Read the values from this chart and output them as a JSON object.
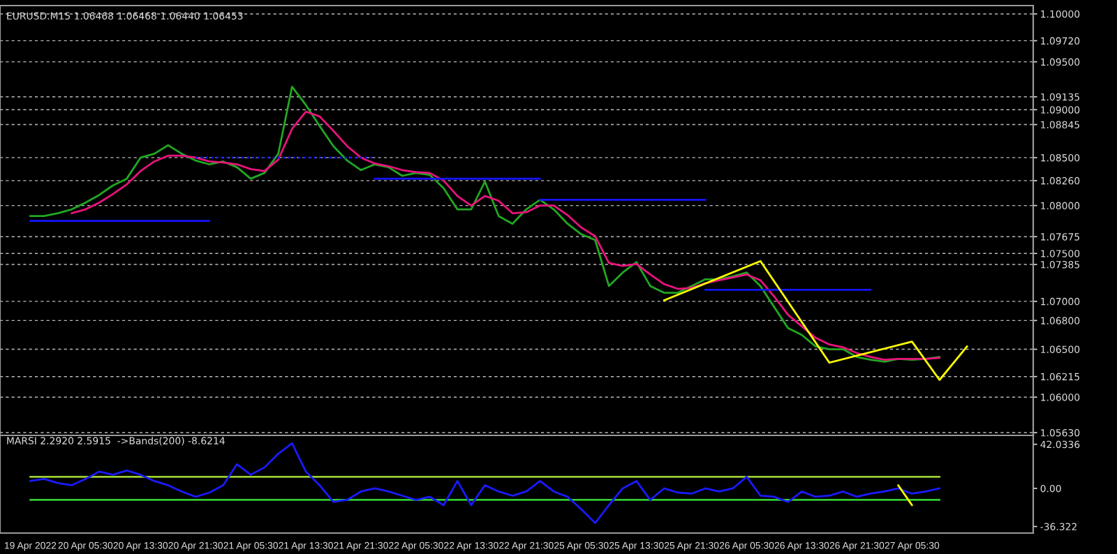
{
  "chart_data": [
    {
      "type": "line",
      "title": "EURUSD.M15 1.06468 1.06468 1.06440 1.06453",
      "tick_labels": "y",
      "grid": "y",
      "marker": "none",
      "categories": [
        null,
        null,
        null,
        null,
        null,
        null,
        null,
        null,
        null,
        null,
        null,
        null,
        null,
        null,
        null,
        null,
        null,
        null,
        null,
        null,
        null,
        null,
        null,
        null,
        null,
        null,
        null,
        null,
        null,
        null,
        null,
        null,
        null,
        null,
        null,
        null,
        null,
        null,
        null,
        null,
        null,
        null,
        null,
        null,
        null,
        null,
        null,
        null,
        null,
        null,
        null,
        null,
        null,
        null,
        null,
        null,
        null,
        null,
        null,
        null,
        null,
        null,
        null,
        null,
        null,
        null,
        null,
        null,
        null
      ],
      "ylim": [
        1.05601,
        1.10087
      ],
      "yticks": [
        {
          "value": 1.1,
          "label": "1.10000"
        },
        {
          "value": 1.0972,
          "label": "1.09720"
        },
        {
          "value": 1.095,
          "label": "1.09500"
        },
        {
          "value": 1.09135,
          "label": "1.09135"
        },
        {
          "value": 1.09,
          "label": "1.09000"
        },
        {
          "value": 1.08845,
          "label": "1.08845"
        },
        {
          "value": 1.085,
          "label": "1.08500"
        },
        {
          "value": 1.0826,
          "label": "1.08260"
        },
        {
          "value": 1.08,
          "label": "1.08000"
        },
        {
          "value": 1.07675,
          "label": "1.07675"
        },
        {
          "value": 1.075,
          "label": "1.07500"
        },
        {
          "value": 1.07385,
          "label": "1.07385"
        },
        {
          "value": 1.07,
          "label": "1.07000"
        },
        {
          "value": 1.068,
          "label": "1.06800"
        },
        {
          "value": 1.065,
          "label": "1.06500"
        },
        {
          "value": 1.06215,
          "label": "1.06215"
        },
        {
          "value": 1.06,
          "label": "1.06000"
        },
        {
          "value": 1.0563,
          "label": "1.05630"
        }
      ],
      "series": [
        {
          "color": "#22a722",
          "values": [
            1.0789,
            1.0789,
            1.0792,
            1.0796,
            1.0803,
            1.0811,
            1.0821,
            1.0828,
            1.085,
            1.0854,
            1.0863,
            1.0854,
            1.0847,
            1.0843,
            1.0846,
            1.084,
            1.0828,
            1.0834,
            1.0854,
            1.0924,
            1.0905,
            1.0883,
            1.0862,
            1.0847,
            1.0837,
            1.0843,
            1.084,
            1.0831,
            1.0834,
            1.0832,
            1.0818,
            1.0796,
            1.0796,
            1.0825,
            1.0789,
            1.0781,
            1.0796,
            1.0806,
            1.0796,
            1.0781,
            1.077,
            1.0764,
            1.0716,
            1.073,
            1.0741,
            1.0716,
            1.0709,
            1.0709,
            1.0716,
            1.0723,
            1.0723,
            1.0726,
            1.073,
            1.0716,
            1.0694,
            1.0672,
            1.0665,
            1.0653,
            1.065,
            1.065,
            1.0642,
            1.0639,
            1.0637,
            1.064,
            1.0639,
            1.064,
            1.0642,
            null,
            null
          ]
        },
        {
          "color": "#e8137c",
          "values": [
            null,
            null,
            null,
            1.0792,
            1.0796,
            1.0803,
            1.0812,
            1.0822,
            1.0836,
            1.0846,
            1.0852,
            1.0852,
            1.085,
            1.0846,
            1.0845,
            1.0843,
            1.0838,
            1.0836,
            1.0848,
            1.088,
            1.0898,
            1.0893,
            1.0878,
            1.0862,
            1.085,
            1.0844,
            1.0841,
            1.0837,
            1.0835,
            1.0834,
            1.0826,
            1.081,
            1.08,
            1.081,
            1.0805,
            1.0792,
            1.0793,
            1.08,
            1.08,
            1.079,
            1.0777,
            1.0768,
            1.074,
            1.0737,
            1.0739,
            1.0728,
            1.0718,
            1.0713,
            1.0714,
            1.0719,
            1.0722,
            1.0725,
            1.0728,
            1.0722,
            1.0705,
            1.0686,
            1.0674,
            1.0662,
            1.0655,
            1.0652,
            1.0646,
            1.0642,
            1.0639,
            1.064,
            1.064,
            1.064,
            1.0641,
            null,
            null
          ]
        },
        {
          "color": "#1414ff",
          "values": [
            1.0784,
            null,
            null,
            null,
            null,
            null,
            null,
            null,
            null,
            null,
            null,
            null,
            null,
            1.0784,
            null,
            null,
            null,
            null,
            null,
            null,
            null,
            null,
            null,
            null,
            null,
            null,
            null,
            null,
            null,
            null,
            null,
            null,
            null,
            null,
            null,
            null,
            null,
            null,
            null,
            null,
            null,
            null,
            null,
            null,
            null,
            null,
            null,
            null,
            null,
            null,
            null,
            null,
            null,
            null,
            null,
            null,
            null,
            null,
            null,
            null,
            null,
            null,
            null,
            null,
            null,
            null,
            null,
            null,
            null
          ]
        },
        {
          "color": "#1414ff",
          "line_style": "dotted",
          "values": [
            null,
            null,
            null,
            null,
            null,
            null,
            null,
            null,
            null,
            null,
            null,
            null,
            1.085,
            null,
            null,
            null,
            null,
            null,
            null,
            null,
            null,
            null,
            null,
            null,
            null,
            1.085,
            null,
            null,
            null,
            null,
            null,
            null,
            null,
            null,
            null,
            null,
            null,
            null,
            null,
            null,
            null,
            null,
            null,
            null,
            null,
            null,
            null,
            null,
            null,
            null,
            null,
            null,
            null,
            null,
            null,
            null,
            null,
            null,
            null,
            null,
            null,
            null,
            null,
            null,
            null,
            null,
            null,
            null,
            null
          ]
        },
        {
          "color": "#1414ff",
          "values": [
            null,
            null,
            null,
            null,
            null,
            null,
            null,
            null,
            null,
            null,
            null,
            null,
            null,
            null,
            null,
            null,
            null,
            null,
            null,
            null,
            null,
            null,
            null,
            null,
            null,
            1.0828,
            null,
            null,
            null,
            null,
            null,
            null,
            null,
            null,
            null,
            null,
            null,
            1.0828,
            null,
            null,
            null,
            null,
            null,
            null,
            null,
            null,
            null,
            null,
            null,
            null,
            null,
            null,
            null,
            null,
            null,
            null,
            null,
            null,
            null,
            null,
            null,
            null,
            null,
            null,
            null,
            null,
            null,
            null,
            null
          ]
        },
        {
          "color": "#1414ff",
          "values": [
            null,
            null,
            null,
            null,
            null,
            null,
            null,
            null,
            null,
            null,
            null,
            null,
            null,
            null,
            null,
            null,
            null,
            null,
            null,
            null,
            null,
            null,
            null,
            null,
            null,
            null,
            null,
            null,
            null,
            null,
            null,
            null,
            null,
            null,
            null,
            null,
            null,
            1.0806,
            null,
            null,
            null,
            null,
            null,
            null,
            null,
            null,
            null,
            null,
            null,
            1.0806,
            null,
            null,
            null,
            null,
            null,
            null,
            null,
            null,
            null,
            null,
            null,
            null,
            null,
            null,
            null,
            null,
            null,
            null,
            null
          ]
        },
        {
          "color": "#1414ff",
          "values": [
            null,
            null,
            null,
            null,
            null,
            null,
            null,
            null,
            null,
            null,
            null,
            null,
            null,
            null,
            null,
            null,
            null,
            null,
            null,
            null,
            null,
            null,
            null,
            null,
            null,
            null,
            null,
            null,
            null,
            null,
            null,
            null,
            null,
            null,
            null,
            null,
            null,
            null,
            null,
            null,
            null,
            null,
            null,
            null,
            null,
            null,
            null,
            null,
            null,
            1.0712,
            null,
            null,
            null,
            null,
            null,
            null,
            null,
            null,
            null,
            null,
            null,
            1.0712,
            null,
            null,
            null,
            null,
            null,
            null,
            null
          ]
        },
        {
          "color": "#ffff00",
          "values": [
            null,
            null,
            null,
            null,
            null,
            null,
            null,
            null,
            null,
            null,
            null,
            null,
            null,
            null,
            null,
            null,
            null,
            null,
            null,
            null,
            null,
            null,
            null,
            null,
            null,
            null,
            null,
            null,
            null,
            null,
            null,
            null,
            null,
            null,
            null,
            null,
            null,
            null,
            null,
            null,
            null,
            null,
            null,
            null,
            null,
            null,
            1.0701,
            null,
            null,
            null,
            null,
            null,
            null,
            1.0742,
            null,
            null,
            null,
            null,
            1.0636,
            null,
            null,
            null,
            null,
            null,
            1.0658,
            null,
            1.0618,
            null,
            1.0653
          ]
        }
      ]
    },
    {
      "type": "line",
      "title": "MARSI 2.2920 2.5915  ->Bands(200) -8.6214",
      "grid": false,
      "marker": "none",
      "categories": [
        "19 Apr 2022",
        null,
        null,
        null,
        "20 Apr 05:30",
        null,
        null,
        null,
        "20 Apr 13:30",
        null,
        null,
        null,
        "20 Apr 21:30",
        null,
        null,
        null,
        "21 Apr 05:30",
        null,
        null,
        null,
        "21 Apr 13:30",
        null,
        null,
        null,
        "21 Apr 21:30",
        null,
        null,
        null,
        "22 Apr 05:30",
        null,
        null,
        null,
        "22 Apr 13:30",
        null,
        null,
        null,
        "22 Apr 21:30",
        null,
        null,
        null,
        "25 Apr 05:30",
        null,
        null,
        null,
        "25 Apr 13:30",
        null,
        null,
        null,
        "25 Apr 21:30",
        null,
        null,
        null,
        "26 Apr 05:30",
        null,
        null,
        null,
        "26 Apr 13:30",
        null,
        null,
        null,
        "26 Apr 21:30",
        null,
        null,
        null,
        "27 Apr 05:30",
        null,
        null,
        null,
        null
      ],
      "ylim": [
        -42.6,
        50.5
      ],
      "yticks": [
        42.0336,
        {
          "value": 0,
          "label": "0.00"
        },
        -36.322
      ],
      "series": [
        {
          "color": "#9acd32",
          "values": [
            11,
            11,
            11,
            11,
            11,
            11,
            11,
            11,
            11,
            11,
            11,
            11,
            11,
            11,
            11,
            11,
            11,
            11,
            11,
            11,
            11,
            11,
            11,
            11,
            11,
            11,
            11,
            11,
            11,
            11,
            11,
            11,
            11,
            11,
            11,
            11,
            11,
            11,
            11,
            11,
            11,
            11,
            11,
            11,
            11,
            11,
            11,
            11,
            11,
            11,
            11,
            11,
            11,
            11,
            11,
            11,
            11,
            11,
            11,
            11,
            11,
            11,
            11,
            11,
            11,
            11,
            11,
            null,
            null
          ]
        },
        {
          "color": "#32cd32",
          "values": [
            -11,
            -11,
            -11,
            -11,
            -11,
            -11,
            -11,
            -11,
            -11,
            -11,
            -11,
            -11,
            -11,
            -11,
            -11,
            -11,
            -11,
            -11,
            -11,
            -11,
            -11,
            -11,
            -11,
            -11,
            -11,
            -11,
            -11,
            -11,
            -11,
            -11,
            -11,
            -11,
            -11,
            -11,
            -11,
            -11,
            -11,
            -11,
            -11,
            -11,
            -11,
            -11,
            -11,
            -11,
            -11,
            -11,
            -11,
            -11,
            -11,
            -11,
            -11,
            -11,
            -11,
            -11,
            -11,
            -11,
            -11,
            -11,
            -11,
            -11,
            -11,
            -11,
            -11,
            -11,
            -11,
            -11,
            -11,
            null,
            null
          ]
        },
        {
          "color": "#1a1aff",
          "values": [
            7,
            9,
            5,
            3,
            9,
            16,
            13,
            17,
            13,
            7,
            3,
            -3,
            -8,
            -4,
            3,
            23,
            13,
            20,
            33,
            43,
            16,
            3,
            -13,
            -11,
            -3,
            0,
            -3,
            -7,
            -11,
            -8,
            -16,
            7,
            -16,
            3,
            -3,
            -7,
            -3,
            7,
            -3,
            -8,
            -20,
            -33,
            -16,
            0,
            7,
            -11,
            0,
            -4,
            -5,
            0,
            -3,
            0,
            11,
            -7,
            -8,
            -13,
            -3,
            -8,
            -7,
            -3,
            -8,
            -5,
            -3,
            0,
            -5,
            -3,
            0,
            null,
            null
          ]
        },
        {
          "color": "#ffff00",
          "values": [
            null,
            null,
            null,
            null,
            null,
            null,
            null,
            null,
            null,
            null,
            null,
            null,
            null,
            null,
            null,
            null,
            null,
            null,
            null,
            null,
            null,
            null,
            null,
            null,
            null,
            null,
            null,
            null,
            null,
            null,
            null,
            null,
            null,
            null,
            null,
            null,
            null,
            null,
            null,
            null,
            null,
            null,
            null,
            null,
            null,
            null,
            null,
            null,
            null,
            null,
            null,
            null,
            null,
            null,
            null,
            null,
            null,
            null,
            null,
            null,
            null,
            null,
            null,
            3,
            -16,
            null,
            null,
            null,
            null
          ]
        }
      ]
    }
  ]
}
